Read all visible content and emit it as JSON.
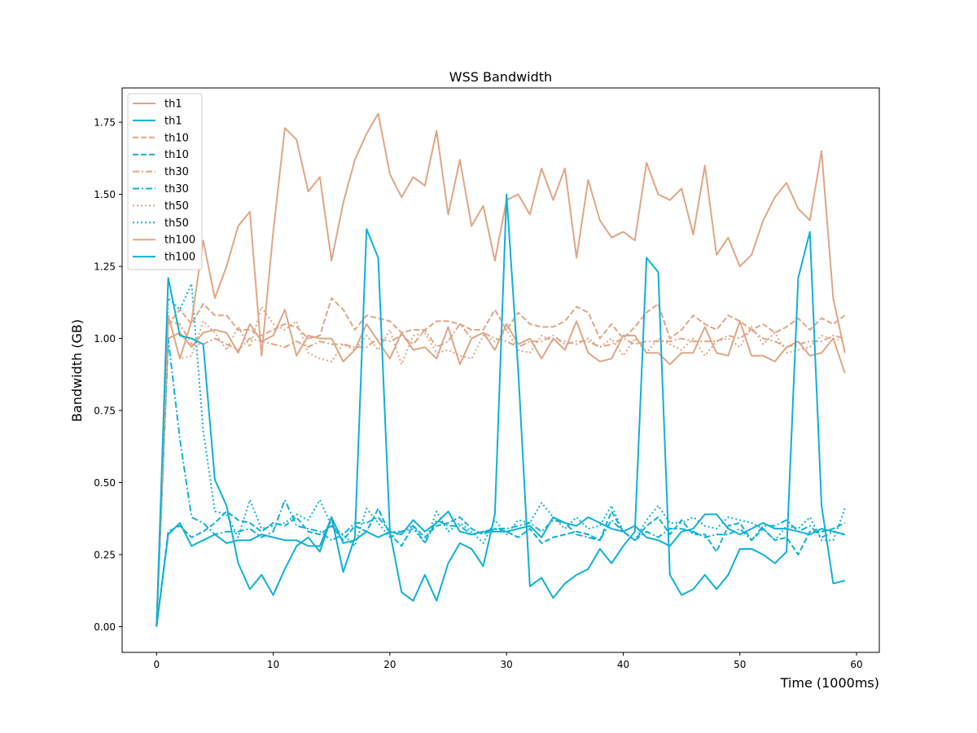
{
  "chart_data": {
    "type": "line",
    "title": "WSS Bandwidth",
    "xlabel": "Time (1000ms)",
    "ylabel": "Bandwidth (GB)",
    "xlim": [
      -2.95,
      61.95
    ],
    "ylim": [
      -0.089,
      1.869
    ],
    "xticks": [
      0,
      10,
      20,
      30,
      40,
      50,
      60
    ],
    "yticks": [
      0.0,
      0.25,
      0.5,
      0.75,
      1.0,
      1.25,
      1.5,
      1.75
    ],
    "ytick_labels": [
      "0.00",
      "0.25",
      "0.50",
      "0.75",
      "1.00",
      "1.25",
      "1.50",
      "1.75"
    ],
    "legend_position": "upper-left",
    "colors": {
      "orange": "#e0a585",
      "cyan": "#0fb0d6"
    },
    "x": [
      0,
      1,
      2,
      3,
      4,
      5,
      6,
      7,
      8,
      9,
      10,
      11,
      12,
      13,
      14,
      15,
      16,
      17,
      18,
      19,
      20,
      21,
      22,
      23,
      24,
      25,
      26,
      27,
      28,
      29,
      30,
      31,
      32,
      33,
      34,
      35,
      36,
      37,
      38,
      39,
      40,
      41,
      42,
      43,
      44,
      45,
      46,
      47,
      48,
      49,
      50,
      51,
      52,
      53,
      54,
      55,
      56,
      57,
      58,
      59
    ],
    "series": [
      {
        "name": "th1",
        "color": "orange",
        "dash": "solid",
        "values": [
          0.0,
          1.0,
          1.02,
          0.97,
          1.02,
          1.03,
          1.02,
          0.95,
          1.05,
          0.99,
          1.01,
          1.1,
          0.94,
          1.01,
          1.0,
          1.0,
          0.92,
          0.96,
          1.05,
          0.99,
          0.93,
          1.02,
          0.96,
          0.97,
          0.93,
          1.04,
          0.91,
          1.0,
          1.02,
          0.96,
          1.05,
          0.98,
          1.0,
          0.93,
          1.0,
          0.96,
          1.06,
          0.95,
          0.92,
          0.93,
          1.01,
          1.01,
          0.95,
          0.95,
          0.91,
          0.95,
          0.95,
          1.04,
          0.95,
          0.94,
          1.06,
          0.94,
          0.94,
          0.92,
          0.97,
          0.99,
          0.94,
          0.95,
          1.0,
          0.88
        ]
      },
      {
        "name": "th1",
        "color": "cyan",
        "dash": "solid",
        "values": [
          0.0,
          0.32,
          0.36,
          0.28,
          0.3,
          0.32,
          0.29,
          0.3,
          0.3,
          0.32,
          0.31,
          0.3,
          0.3,
          0.28,
          0.28,
          0.38,
          0.29,
          0.3,
          0.33,
          0.31,
          0.33,
          0.32,
          0.37,
          0.33,
          0.36,
          0.4,
          0.33,
          0.32,
          0.33,
          0.33,
          0.33,
          0.34,
          0.35,
          0.31,
          0.38,
          0.36,
          0.35,
          0.38,
          0.36,
          0.34,
          0.33,
          0.35,
          0.31,
          0.3,
          0.28,
          0.33,
          0.34,
          0.39,
          0.39,
          0.34,
          0.32,
          0.34,
          0.36,
          0.34,
          0.34,
          0.33,
          0.32,
          0.34,
          0.33,
          0.32
        ]
      },
      {
        "name": "th10",
        "color": "orange",
        "dash": "dashed",
        "values": [
          0.0,
          1.05,
          1.1,
          1.05,
          1.12,
          1.08,
          1.08,
          1.03,
          1.03,
          1.01,
          1.03,
          1.05,
          1.04,
          1.0,
          1.01,
          1.14,
          1.1,
          1.03,
          1.08,
          1.07,
          1.06,
          1.02,
          1.03,
          1.03,
          1.06,
          1.06,
          1.05,
          1.03,
          1.03,
          1.1,
          1.03,
          1.09,
          1.05,
          1.04,
          1.04,
          1.06,
          1.11,
          1.09,
          1.0,
          1.05,
          1.0,
          1.04,
          1.09,
          1.12,
          1.0,
          1.03,
          1.08,
          1.05,
          1.03,
          1.08,
          1.06,
          1.03,
          1.05,
          1.02,
          1.04,
          1.07,
          1.03,
          1.07,
          1.05,
          1.08
        ]
      },
      {
        "name": "th10",
        "color": "cyan",
        "dash": "dashed",
        "values": [
          0.0,
          0.33,
          0.35,
          0.31,
          0.33,
          0.36,
          0.4,
          0.37,
          0.36,
          0.33,
          0.36,
          0.35,
          0.38,
          0.33,
          0.32,
          0.35,
          0.3,
          0.35,
          0.33,
          0.41,
          0.32,
          0.28,
          0.35,
          0.31,
          0.35,
          0.36,
          0.38,
          0.34,
          0.32,
          0.34,
          0.33,
          0.31,
          0.34,
          0.29,
          0.31,
          0.32,
          0.33,
          0.32,
          0.3,
          0.4,
          0.33,
          0.3,
          0.35,
          0.38,
          0.32,
          0.37,
          0.32,
          0.32,
          0.26,
          0.35,
          0.36,
          0.3,
          0.34,
          0.3,
          0.31,
          0.25,
          0.33,
          0.33,
          0.34,
          0.36
        ]
      },
      {
        "name": "th30",
        "color": "orange",
        "dash": "dashdot",
        "values": [
          0.0,
          1.06,
          1.05,
          0.98,
          0.98,
          1.0,
          0.98,
          0.96,
          1.0,
          0.99,
          0.98,
          0.97,
          0.99,
          0.97,
          0.99,
          0.98,
          0.98,
          0.97,
          0.97,
          1.0,
          0.99,
          1.01,
          0.98,
          1.03,
          0.97,
          0.99,
          1.05,
          1.0,
          1.02,
          1.0,
          0.99,
          0.97,
          0.99,
          0.99,
          1.01,
          0.98,
          0.99,
          0.99,
          0.97,
          0.98,
          1.0,
          0.98,
          0.99,
          0.99,
          0.99,
          1.0,
          0.99,
          0.99,
          0.99,
          1.01,
          1.0,
          1.03,
          1.0,
          0.99,
          0.97,
          0.98,
          0.99,
          0.99,
          1.01,
          1.0
        ]
      },
      {
        "name": "th30",
        "color": "cyan",
        "dash": "dashdot",
        "values": [
          0.0,
          1.0,
          0.65,
          0.38,
          0.36,
          0.32,
          0.33,
          0.33,
          0.34,
          0.31,
          0.33,
          0.44,
          0.35,
          0.34,
          0.33,
          0.3,
          0.32,
          0.36,
          0.36,
          0.38,
          0.33,
          0.33,
          0.35,
          0.29,
          0.37,
          0.35,
          0.35,
          0.32,
          0.33,
          0.34,
          0.34,
          0.35,
          0.36,
          0.33,
          0.37,
          0.36,
          0.32,
          0.31,
          0.3,
          0.37,
          0.33,
          0.3,
          0.33,
          0.31,
          0.34,
          0.34,
          0.33,
          0.31,
          0.32,
          0.32,
          0.34,
          0.3,
          0.35,
          0.35,
          0.37,
          0.33,
          0.35,
          0.31,
          0.33,
          0.32
        ]
      },
      {
        "name": "th50",
        "color": "orange",
        "dash": "dotted",
        "values": [
          0.0,
          1.08,
          0.93,
          0.94,
          1.06,
          1.02,
          0.96,
          1.04,
          0.97,
          1.11,
          1.05,
          1.03,
          1.06,
          0.95,
          0.93,
          0.92,
          0.98,
          0.96,
          1.01,
          0.96,
          1.03,
          0.91,
          1.01,
          1.02,
          0.95,
          0.96,
          0.94,
          0.93,
          1.01,
          0.99,
          1.03,
          0.96,
          0.95,
          1.01,
          0.99,
          0.99,
          0.98,
          1.0,
          0.97,
          1.0,
          0.94,
          1.0,
          0.95,
          1.0,
          0.98,
          0.96,
          1.0,
          0.94,
          0.99,
          1.0,
          0.97,
          1.04,
          0.98,
          1.02,
          0.95,
          0.96,
          0.97,
          1.01,
          1.0,
          0.99
        ]
      },
      {
        "name": "th50",
        "color": "cyan",
        "dash": "dotted",
        "values": [
          0.0,
          1.14,
          1.1,
          1.19,
          0.68,
          0.4,
          0.39,
          0.31,
          0.44,
          0.34,
          0.35,
          0.36,
          0.39,
          0.37,
          0.44,
          0.35,
          0.32,
          0.28,
          0.41,
          0.36,
          0.31,
          0.33,
          0.34,
          0.29,
          0.4,
          0.33,
          0.36,
          0.33,
          0.29,
          0.37,
          0.32,
          0.37,
          0.36,
          0.43,
          0.38,
          0.34,
          0.38,
          0.34,
          0.35,
          0.42,
          0.33,
          0.3,
          0.37,
          0.42,
          0.36,
          0.36,
          0.38,
          0.35,
          0.34,
          0.38,
          0.37,
          0.36,
          0.34,
          0.3,
          0.35,
          0.34,
          0.38,
          0.3,
          0.3,
          0.41
        ]
      },
      {
        "name": "th100",
        "color": "orange",
        "dash": "solid",
        "values": [
          0.0,
          1.08,
          0.93,
          1.06,
          1.34,
          1.14,
          1.25,
          1.39,
          1.44,
          0.94,
          1.37,
          1.73,
          1.69,
          1.51,
          1.56,
          1.27,
          1.47,
          1.62,
          1.71,
          1.78,
          1.57,
          1.49,
          1.56,
          1.53,
          1.72,
          1.43,
          1.62,
          1.39,
          1.46,
          1.27,
          1.48,
          1.5,
          1.43,
          1.59,
          1.48,
          1.59,
          1.28,
          1.55,
          1.41,
          1.35,
          1.37,
          1.34,
          1.61,
          1.5,
          1.48,
          1.52,
          1.36,
          1.6,
          1.29,
          1.35,
          1.25,
          1.29,
          1.41,
          1.49,
          1.54,
          1.45,
          1.41,
          1.65,
          1.14,
          0.95
        ]
      },
      {
        "name": "th100",
        "color": "cyan",
        "dash": "solid",
        "values": [
          0.0,
          1.21,
          1.01,
          1.0,
          0.98,
          0.51,
          0.42,
          0.22,
          0.13,
          0.18,
          0.11,
          0.2,
          0.28,
          0.31,
          0.26,
          0.38,
          0.19,
          0.31,
          1.38,
          1.28,
          0.33,
          0.12,
          0.09,
          0.18,
          0.09,
          0.22,
          0.29,
          0.27,
          0.21,
          0.39,
          1.5,
          0.89,
          0.14,
          0.17,
          0.1,
          0.15,
          0.18,
          0.2,
          0.27,
          0.22,
          0.28,
          0.33,
          1.28,
          1.23,
          0.18,
          0.11,
          0.13,
          0.18,
          0.13,
          0.18,
          0.27,
          0.27,
          0.25,
          0.22,
          0.26,
          1.21,
          1.37,
          0.42,
          0.15,
          0.16
        ]
      }
    ]
  }
}
